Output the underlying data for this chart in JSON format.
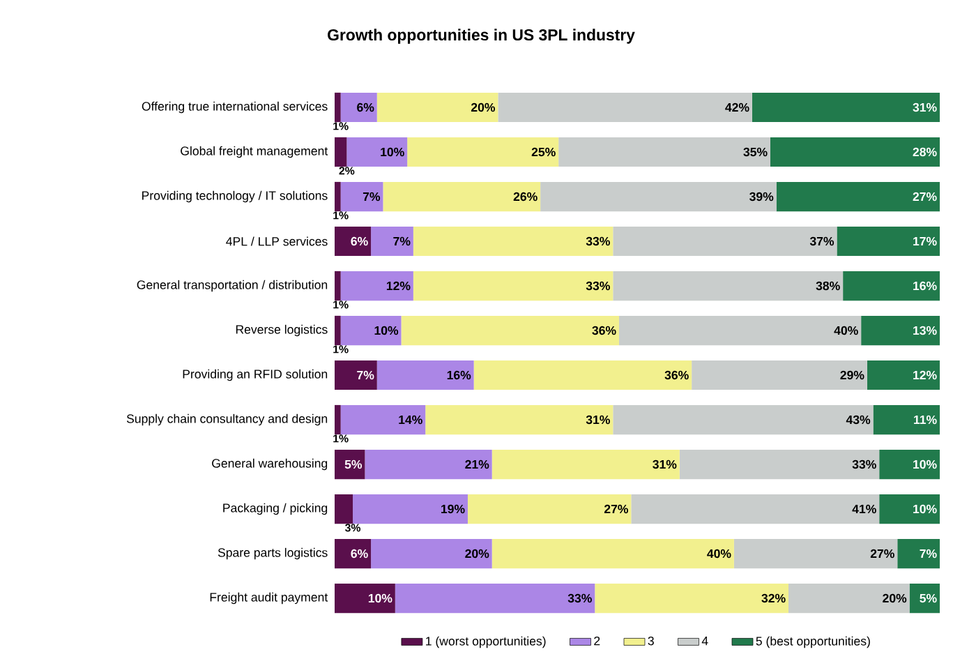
{
  "chart_data": {
    "type": "bar",
    "orientation": "horizontal",
    "stacked": true,
    "title": "Growth opportunities in US 3PL industry",
    "categories": [
      "Offering true international services",
      "Global freight management",
      "Providing technology / IT solutions",
      "4PL / LLP services",
      "General transportation / distribution",
      "Reverse logistics",
      "Providing an RFID solution",
      "Supply chain consultancy and design",
      "General warehousing",
      "Packaging / picking",
      "Spare parts logistics",
      "Freight audit payment"
    ],
    "series": [
      {
        "name": "1 (worst opportunities)",
        "color": "#5a0f4c",
        "values": [
          1,
          2,
          1,
          6,
          1,
          1,
          7,
          1,
          5,
          3,
          6,
          10
        ],
        "value_labels": [
          "1%",
          "2%",
          "1%",
          "6%",
          "1%",
          "1%",
          "7%",
          "1%",
          "5%",
          "3%",
          "6%",
          "10%"
        ]
      },
      {
        "name": "2",
        "color": "#ab86e6",
        "values": [
          6,
          10,
          7,
          7,
          12,
          10,
          16,
          14,
          21,
          19,
          20,
          33
        ],
        "value_labels": [
          "6%",
          "10%",
          "7%",
          "7%",
          "12%",
          "10%",
          "16%",
          "14%",
          "21%",
          "19%",
          "20%",
          "33%"
        ]
      },
      {
        "name": "3",
        "color": "#f2f08e",
        "values": [
          20,
          25,
          26,
          33,
          33,
          36,
          36,
          31,
          31,
          27,
          40,
          32
        ],
        "value_labels": [
          "20%",
          "25%",
          "26%",
          "33%",
          "33%",
          "36%",
          "36%",
          "31%",
          "31%",
          "27%",
          "40%",
          "32%"
        ]
      },
      {
        "name": "4",
        "color": "#c9cdcc",
        "values": [
          42,
          35,
          39,
          37,
          38,
          40,
          29,
          43,
          33,
          41,
          27,
          20
        ],
        "value_labels": [
          "42%",
          "35%",
          "39%",
          "37%",
          "38%",
          "40%",
          "29%",
          "43%",
          "33%",
          "41%",
          "27%",
          "20%"
        ]
      },
      {
        "name": "5 (best opportunities)",
        "color": "#217a4c",
        "values": [
          31,
          28,
          27,
          17,
          16,
          13,
          12,
          11,
          10,
          10,
          7,
          5
        ],
        "value_labels": [
          "31%",
          "28%",
          "27%",
          "17%",
          "16%",
          "13%",
          "12%",
          "11%",
          "10%",
          "10%",
          "7%",
          "5%"
        ]
      }
    ],
    "xlim": [
      0,
      100
    ],
    "tick_labels": "y",
    "legend": "bottom"
  }
}
